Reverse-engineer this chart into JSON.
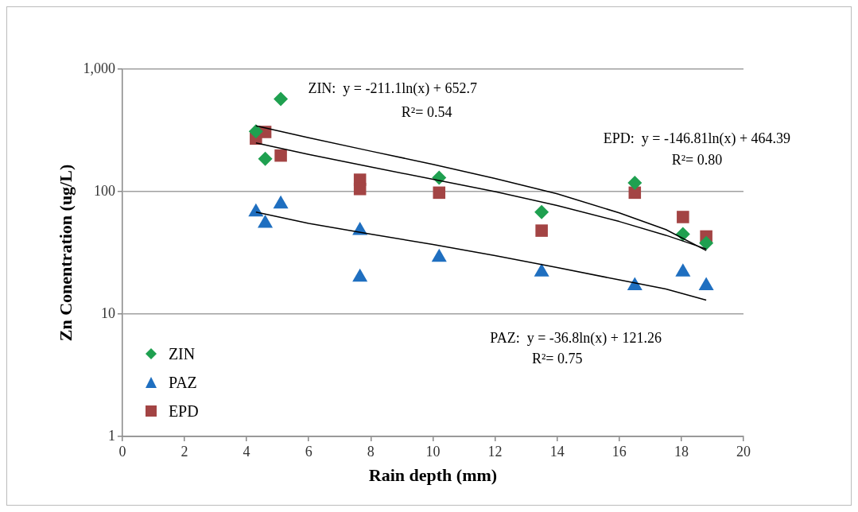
{
  "chart_data": {
    "type": "scatter",
    "xlabel": "Rain depth (mm)",
    "ylabel": "Zn Conentration (ug/L)",
    "log": "y",
    "grid": "y",
    "legend": "bottom left",
    "xlim": [
      0,
      20
    ],
    "xticks": [
      0,
      2,
      4,
      6,
      8,
      10,
      12,
      14,
      16,
      18,
      20
    ],
    "ylim": [
      1,
      1000
    ],
    "yticks": [
      1,
      10,
      100,
      {
        "value": 1000,
        "label": "1,000"
      }
    ],
    "series": [
      {
        "name": "ZIN",
        "marker": "diamond",
        "color": "#1fa050",
        "x": [
          4.3,
          4.6,
          5.1,
          10.2,
          13.5,
          16.5,
          18.05,
          18.8
        ],
        "values": [
          310,
          185,
          570,
          130,
          68,
          118,
          45,
          38
        ]
      },
      {
        "name": "PAZ",
        "marker": "triangle",
        "color": "#1f6fc0",
        "x": [
          4.3,
          4.6,
          5.1,
          7.65,
          7.65,
          10.2,
          13.5,
          16.5,
          18.05,
          18.8
        ],
        "values": [
          68,
          55,
          79,
          48,
          20,
          29,
          22,
          17,
          22,
          17
        ]
      },
      {
        "name": "EPD",
        "marker": "square",
        "color": "#a34444",
        "x": [
          4.3,
          4.6,
          5.1,
          7.65,
          7.65,
          10.2,
          13.5,
          16.5,
          18.05,
          18.8
        ],
        "values": [
          271,
          307,
          197,
          125,
          105,
          98,
          48,
          98,
          62,
          43
        ]
      },
      {
        "type": "line",
        "marker": "none",
        "color": "#000000",
        "x": [
          4.3,
          6,
          8,
          10,
          12,
          14,
          16,
          17.5,
          18.8
        ],
        "values": [
          345,
          275,
          214,
          167,
          128,
          96,
          67,
          49,
          33
        ]
      },
      {
        "type": "line",
        "marker": "none",
        "color": "#000000",
        "x": [
          4.3,
          6,
          8,
          10,
          12,
          14,
          16,
          17.5,
          18.8
        ],
        "values": [
          250,
          201,
          159,
          126,
          100,
          77,
          57,
          44,
          34
        ]
      },
      {
        "type": "line",
        "marker": "none",
        "color": "#000000",
        "x": [
          4.3,
          6,
          8,
          10,
          12,
          14,
          16,
          17.5,
          18.8
        ],
        "values": [
          68,
          55,
          45,
          37,
          30,
          24,
          19,
          16,
          13
        ]
      }
    ],
    "annotations": [
      "ZIN:  y = -211.1ln(x) + 652.7",
      "R²= 0.54",
      "EPD:  y = -146.81ln(x) + 464.39",
      "R²= 0.80",
      "PAZ:  y = -36.8ln(x) + 121.26",
      "R²= 0.75"
    ]
  }
}
